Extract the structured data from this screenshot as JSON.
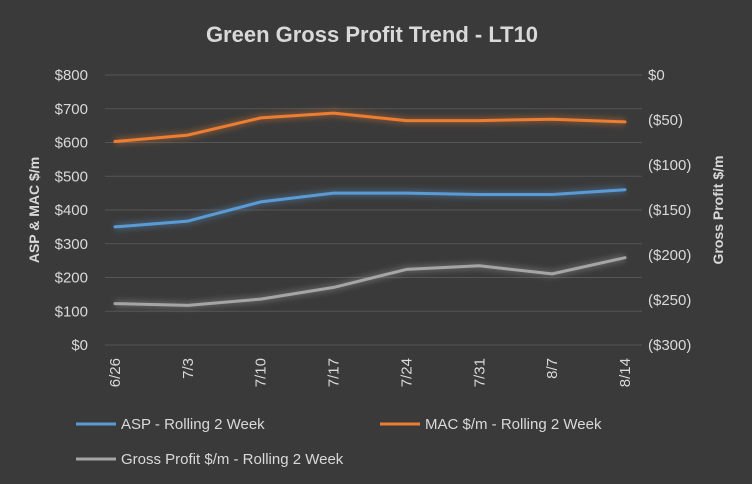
{
  "chart_data": {
    "type": "line",
    "title": "Green Gross Profit Trend - LT10",
    "categories": [
      "6/26",
      "7/3",
      "7/10",
      "7/17",
      "7/24",
      "7/31",
      "8/7",
      "8/14"
    ],
    "ylabel": "ASP & MAC $/m",
    "y2label": "Gross Profit $/m",
    "ylim": [
      0,
      800
    ],
    "y2lim": [
      -300,
      0
    ],
    "yticks": [
      "$0",
      "$100",
      "$200",
      "$300",
      "$400",
      "$500",
      "$600",
      "$700",
      "$800"
    ],
    "y2ticks": [
      "($300)",
      "($250)",
      "($200)",
      "($150)",
      "($100)",
      "($50)",
      "$0"
    ],
    "grid": true,
    "legend_position": "bottom",
    "series": [
      {
        "name": "ASP - Rolling 2 Week",
        "axis": "left",
        "color": "#5b9bd5",
        "values": [
          350,
          367,
          424,
          450,
          450,
          446,
          446,
          460
        ]
      },
      {
        "name": "MAC $/m - Rolling 2 Week",
        "axis": "left",
        "color": "#ed7d31",
        "values": [
          603,
          622,
          673,
          687,
          665,
          665,
          669,
          661
        ]
      },
      {
        "name": "Gross Profit $/m - Rolling 2 Week",
        "axis": "right",
        "color": "#a5a5a5",
        "values": [
          -254,
          -256,
          -249,
          -236,
          -216,
          -212,
          -221,
          -203
        ]
      }
    ]
  }
}
